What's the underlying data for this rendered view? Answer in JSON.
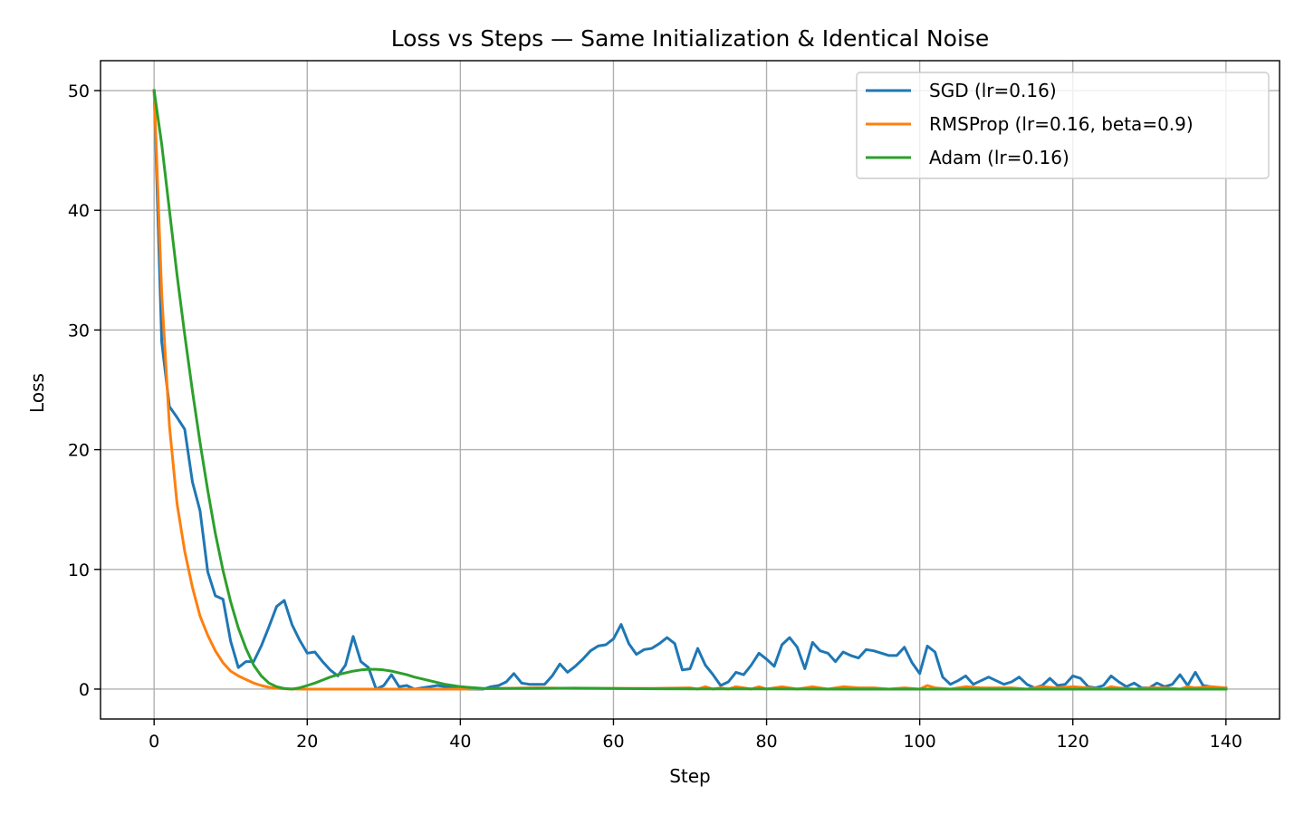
{
  "chart_data": {
    "type": "line",
    "title": "Loss vs Steps — Same Initialization & Identical Noise",
    "xlabel": "Step",
    "ylabel": "Loss",
    "xlim": [
      -7,
      147
    ],
    "ylim": [
      -2.5,
      52.5
    ],
    "xticks": [
      0,
      20,
      40,
      60,
      80,
      100,
      120,
      140
    ],
    "yticks": [
      0,
      10,
      20,
      30,
      40,
      50
    ],
    "grid": true,
    "legend_position": "top-right",
    "series": [
      {
        "name": "SGD (lr=0.16)",
        "color": "#1f77b4",
        "x": [
          0,
          1,
          2,
          3,
          4,
          5,
          6,
          7,
          8,
          9,
          10,
          11,
          12,
          13,
          14,
          15,
          16,
          17,
          18,
          19,
          20,
          21,
          22,
          23,
          24,
          25,
          26,
          27,
          28,
          29,
          30,
          31,
          32,
          33,
          34,
          35,
          36,
          37,
          38,
          39,
          40,
          41,
          42,
          43,
          44,
          45,
          46,
          47,
          48,
          49,
          50,
          51,
          52,
          53,
          54,
          55,
          56,
          57,
          58,
          59,
          60,
          61,
          62,
          63,
          64,
          65,
          66,
          67,
          68,
          69,
          70,
          71,
          72,
          73,
          74,
          75,
          76,
          77,
          78,
          79,
          80,
          81,
          82,
          83,
          84,
          85,
          86,
          87,
          88,
          89,
          90,
          91,
          92,
          93,
          94,
          95,
          96,
          97,
          98,
          99,
          100,
          101,
          102,
          103,
          104,
          105,
          106,
          107,
          108,
          109,
          110,
          111,
          112,
          113,
          114,
          115,
          116,
          117,
          118,
          119,
          120,
          121,
          122,
          123,
          124,
          125,
          126,
          127,
          128,
          129,
          130,
          131,
          132,
          133,
          134,
          135,
          136,
          137,
          138,
          139,
          140
        ],
        "y": [
          50,
          29,
          23.6,
          22.7,
          21.7,
          17.3,
          14.9,
          9.8,
          7.8,
          7.5,
          4.0,
          1.8,
          2.3,
          2.3,
          3.6,
          5.2,
          6.9,
          7.4,
          5.4,
          4.1,
          3.0,
          3.1,
          2.3,
          1.6,
          1.1,
          2.0,
          4.4,
          2.3,
          1.8,
          0.0,
          0.3,
          1.2,
          0.2,
          0.3,
          0.0,
          0.1,
          0.2,
          0.3,
          0.2,
          0.1,
          0.1,
          0.0,
          0.0,
          0.0,
          0.2,
          0.3,
          0.6,
          1.3,
          0.5,
          0.4,
          0.4,
          0.4,
          1.1,
          2.1,
          1.4,
          1.9,
          2.5,
          3.2,
          3.6,
          3.7,
          4.2,
          5.4,
          3.8,
          2.9,
          3.3,
          3.4,
          3.8,
          4.3,
          3.8,
          1.6,
          1.7,
          3.4,
          2.0,
          1.2,
          0.3,
          0.6,
          1.4,
          1.2,
          2.0,
          3.0,
          2.5,
          1.9,
          3.7,
          4.3,
          3.5,
          1.7,
          3.9,
          3.2,
          3.0,
          2.3,
          3.1,
          2.8,
          2.6,
          3.3,
          3.2,
          3.0,
          2.8,
          2.8,
          3.5,
          2.2,
          1.3,
          3.6,
          3.1,
          1.0,
          0.4,
          0.7,
          1.1,
          0.4,
          0.7,
          1.0,
          0.7,
          0.4,
          0.6,
          1.0,
          0.4,
          0.1,
          0.3,
          0.9,
          0.3,
          0.4,
          1.1,
          0.9,
          0.2,
          0.1,
          0.3,
          1.1,
          0.6,
          0.2,
          0.5,
          0.1,
          0.1,
          0.5,
          0.2,
          0.4,
          1.2,
          0.3,
          1.4,
          0.3,
          0.2,
          0.1,
          0.1
        ]
      },
      {
        "name": "RMSProp (lr=0.16, beta=0.9)",
        "color": "#ff7f0e",
        "x": [
          0,
          1,
          2,
          3,
          4,
          5,
          6,
          7,
          8,
          9,
          10,
          11,
          12,
          13,
          14,
          15,
          16,
          17,
          18,
          19,
          20,
          22,
          24,
          26,
          28,
          30,
          32,
          34,
          36,
          38,
          40,
          45,
          50,
          55,
          60,
          65,
          70,
          71,
          72,
          73,
          74,
          75,
          76,
          77,
          78,
          79,
          80,
          82,
          84,
          86,
          88,
          90,
          92,
          94,
          96,
          98,
          100,
          101,
          102,
          104,
          106,
          108,
          110,
          112,
          114,
          116,
          118,
          120,
          122,
          124,
          125,
          126,
          128,
          130,
          132,
          134,
          135,
          136,
          138,
          140
        ],
        "y": [
          50,
          33,
          22,
          15.5,
          11.5,
          8.5,
          6.1,
          4.5,
          3.2,
          2.2,
          1.5,
          1.1,
          0.8,
          0.5,
          0.3,
          0.15,
          0.07,
          0.03,
          0.01,
          0.0,
          0.0,
          0.0,
          0.0,
          0.0,
          0.0,
          0.0,
          0.0,
          0.0,
          0.0,
          0.0,
          0.0,
          0.05,
          0.1,
          0.05,
          0.05,
          0.05,
          0.1,
          0.0,
          0.2,
          0.0,
          0.1,
          0.0,
          0.2,
          0.1,
          0.0,
          0.2,
          0.0,
          0.2,
          0.0,
          0.2,
          0.0,
          0.2,
          0.1,
          0.1,
          0.0,
          0.1,
          0.0,
          0.3,
          0.1,
          0.0,
          0.2,
          0.1,
          0.1,
          0.1,
          0.0,
          0.2,
          0.1,
          0.2,
          0.1,
          0.0,
          0.2,
          0.1,
          0.0,
          0.1,
          0.1,
          0.0,
          0.2,
          0.1,
          0.2,
          0.1
        ]
      },
      {
        "name": "Adam (lr=0.16)",
        "color": "#2ca02c",
        "x": [
          0,
          1,
          2,
          3,
          4,
          5,
          6,
          7,
          8,
          9,
          10,
          11,
          12,
          13,
          14,
          15,
          16,
          17,
          18,
          19,
          20,
          21,
          22,
          23,
          24,
          25,
          26,
          27,
          28,
          29,
          30,
          31,
          32,
          33,
          34,
          35,
          36,
          37,
          38,
          39,
          40,
          41,
          42,
          43,
          44,
          45,
          50,
          55,
          60,
          65,
          70,
          80,
          90,
          100,
          110,
          120,
          130,
          140
        ],
        "y": [
          50,
          45.5,
          40.0,
          34.6,
          29.6,
          24.9,
          20.6,
          16.6,
          13.0,
          9.9,
          7.3,
          5.1,
          3.4,
          2.0,
          1.1,
          0.5,
          0.2,
          0.05,
          0.0,
          0.1,
          0.3,
          0.5,
          0.75,
          1.0,
          1.2,
          1.35,
          1.5,
          1.6,
          1.65,
          1.65,
          1.6,
          1.5,
          1.35,
          1.2,
          1.0,
          0.85,
          0.7,
          0.55,
          0.4,
          0.3,
          0.2,
          0.15,
          0.1,
          0.05,
          0.05,
          0.05,
          0.05,
          0.08,
          0.05,
          0.03,
          0.02,
          0.01,
          0.0,
          0.0,
          0.0,
          0.0,
          0.0,
          0.0
        ]
      }
    ]
  }
}
